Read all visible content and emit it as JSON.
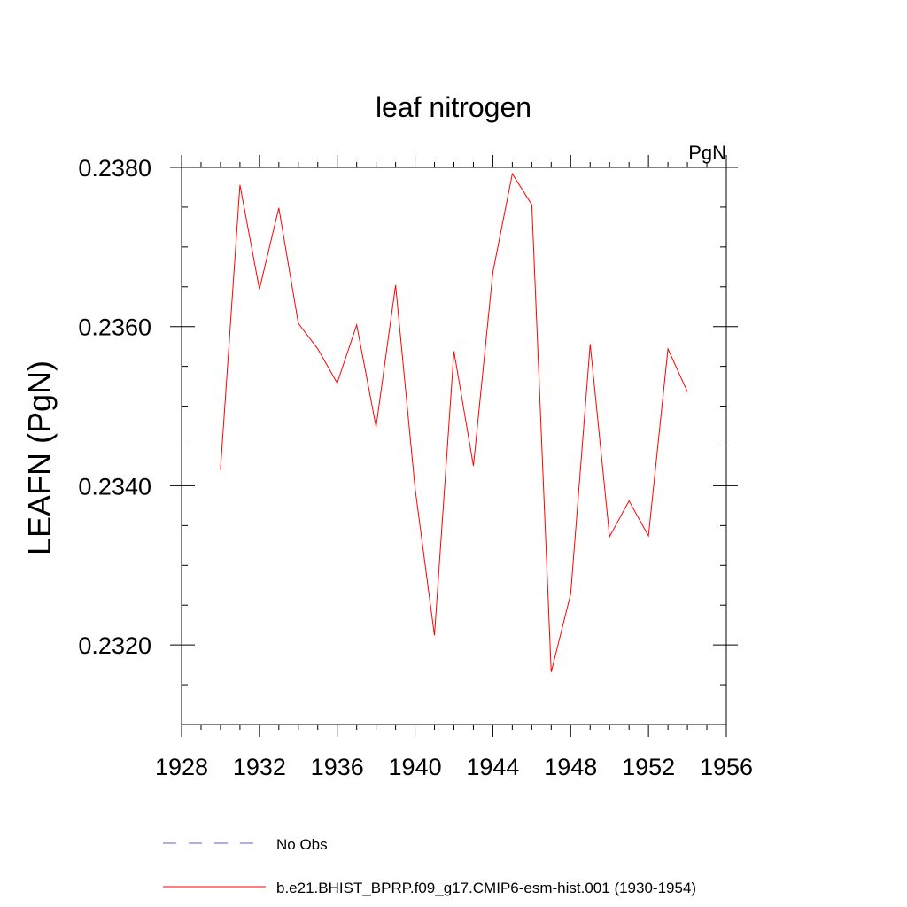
{
  "chart_data": {
    "type": "line",
    "title": "leaf nitrogen",
    "units_label": "PgN",
    "ylabel": "LEAFN  (PgN)",
    "xlabel": "",
    "xlim": [
      1928,
      1956
    ],
    "ylim": [
      0.231,
      0.238
    ],
    "x_ticks": [
      1928,
      1932,
      1936,
      1940,
      1944,
      1948,
      1952,
      1956
    ],
    "x_tick_labels": [
      "1928",
      "1932",
      "1936",
      "1940",
      "1944",
      "1948",
      "1952",
      "1956"
    ],
    "x_minor_step": 1,
    "y_ticks": [
      0.232,
      0.234,
      0.236,
      0.238
    ],
    "y_tick_labels": [
      "0.2320",
      "0.2340",
      "0.2360",
      "0.2380"
    ],
    "y_minor_step": 0.0005,
    "grid": false,
    "legend_position": "bottom",
    "series": [
      {
        "name": "b.e21.BHIST_BPRP.f09_g17.CMIP6-esm-hist.001 (1930-1954)",
        "color": "#ff0000",
        "dash": "solid",
        "x": [
          1930,
          1931,
          1932,
          1933,
          1934,
          1935,
          1936,
          1937,
          1938,
          1939,
          1940,
          1941,
          1942,
          1943,
          1944,
          1945,
          1946,
          1947,
          1948,
          1949,
          1950,
          1951,
          1952,
          1953,
          1954
        ],
        "y": [
          0.2342,
          0.23778,
          0.23647,
          0.23749,
          0.23604,
          0.23572,
          0.23529,
          0.23602,
          0.23474,
          0.23652,
          0.23397,
          0.23212,
          0.23569,
          0.23425,
          0.23668,
          0.23792,
          0.23753,
          0.23166,
          0.23264,
          0.23578,
          0.23336,
          0.23381,
          0.23337,
          0.23572,
          0.23518
        ]
      }
    ],
    "legend": [
      {
        "label": "No Obs",
        "color": "#6a5acd",
        "dash": "dashed"
      },
      {
        "label": "b.e21.BHIST_BPRP.f09_g17.CMIP6-esm-hist.001 (1930-1954)",
        "color": "#ff0000",
        "dash": "solid"
      }
    ]
  }
}
